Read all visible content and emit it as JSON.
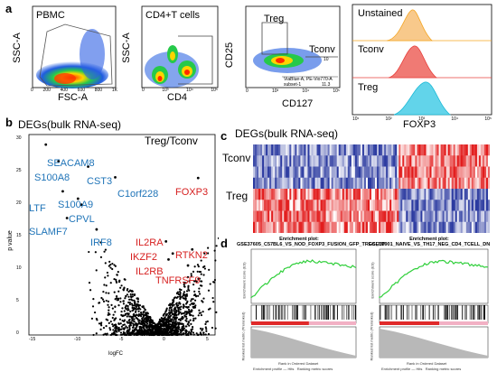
{
  "panels": {
    "a": {
      "label": "a",
      "plot1": {
        "title": "PBMC",
        "xlabel": "FSC-A",
        "ylabel": "SSC-A"
      },
      "plot2": {
        "title": "CD4+T cells",
        "xlabel": "CD4",
        "ylabel": "SSC-A"
      },
      "plot3": {
        "treg": "Treg",
        "tconv": "Tconv",
        "tconv_val": "10",
        "xlabel": "CD127",
        "ylabel": "CD25",
        "gate_note": "ViaBlue-A, PE-Vio770-A subset-1",
        "gate_val": "11.3"
      },
      "plot4": {
        "unstained": "Unstained",
        "tconv": "Tconv",
        "treg": "Treg",
        "xlabel": "FOXP3"
      },
      "fsc_ticks": [
        "0",
        "200",
        "400",
        "600",
        "800",
        "1K"
      ],
      "cd4_ticks": [
        "0",
        "10³",
        "10⁴",
        "10⁵"
      ],
      "cd127_ticks": [
        "0",
        "10³",
        "10⁴",
        "10⁵"
      ],
      "foxp3_ticks": [
        "10¹",
        "10²",
        "10³",
        "10⁴",
        "10⁵"
      ],
      "colors": {
        "unstained": "#f5a623",
        "tconv": "#e8403c",
        "treg": "#19b9d6"
      }
    },
    "b": {
      "label": "b",
      "title": "DEGs(bulk RNA-seq)",
      "comparison": "Treg/Tconv",
      "xlabel": "logFC",
      "ylabel": "p value",
      "x_ticks": [
        "-15",
        "-10",
        "-5",
        "0",
        "5"
      ],
      "y_ticks": [
        "0",
        "5",
        "10",
        "15",
        "20",
        "25",
        "30"
      ],
      "blue_genes": [
        "SEACAM8",
        "S100A8",
        "CST3",
        "C1orf228",
        "LTF",
        "S100A9",
        "CPVL",
        "SLAMF7",
        "IRF8"
      ],
      "red_genes": [
        "FOXP3",
        "IL2RA",
        "RTKN2",
        "IKZF2",
        "IL2RB",
        "TNFRSF9"
      ],
      "colors": {
        "down": "#1f74b8",
        "up": "#d61f1f"
      }
    },
    "c": {
      "label": "c",
      "title": "DEGs(bulk RNA-seq)",
      "row_groups": [
        "Tconv",
        "Treg"
      ],
      "colors": {
        "low": "#2b3aa0",
        "high": "#e21b1b",
        "mid": "#ffffff"
      }
    },
    "d": {
      "label": "d",
      "plot1": {
        "header": "Enrichment plot:",
        "title": "GSE37605_C57BL6_VS_NOD_FOXP3_FUSION_GFP_TREG_UP",
        "ylabel": "Enrichment score (ES)",
        "ylabel2": "Ranked list metric (Preranked)",
        "xlabel": "Rank in Ordered Dataset"
      },
      "plot2": {
        "header": "Enrichment plot:",
        "title": "GSE32901_NAIVE_VS_TH17_NEG_CD4_TCELL_DN",
        "ylabel": "Enrichment score (ES)",
        "ylabel2": "Ranked list metric (Preranked)",
        "xlabel": "Rank in Ordered Dataset"
      },
      "legend": {
        "profile": "Enrichment profile — Hits",
        "metric": "Ranking metric scores"
      },
      "colors": {
        "curve": "#2fcf3a"
      }
    }
  }
}
